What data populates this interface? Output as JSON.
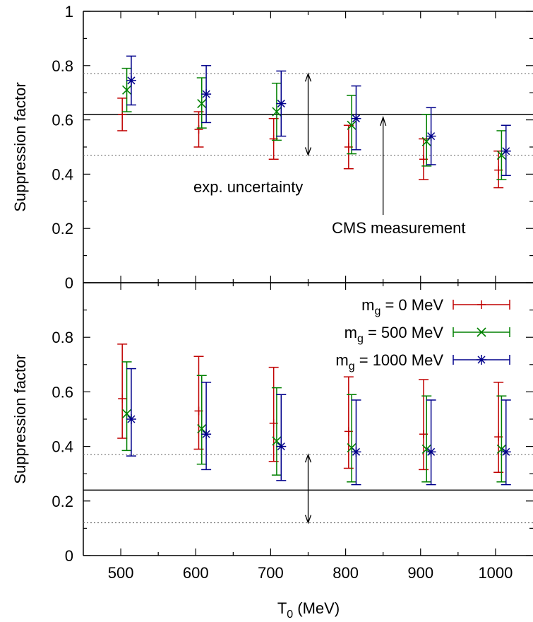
{
  "chart_data": [
    {
      "type": "scatter",
      "panel": "top",
      "ylabel": "Suppression factor",
      "ylim": [
        0,
        1
      ],
      "xlim": [
        450,
        1050
      ],
      "yticks": [
        0,
        0.2,
        0.4,
        0.6,
        0.8,
        1
      ],
      "ytick_labels": [
        "0",
        "0.2",
        "0.4",
        "0.6",
        "0.8",
        "1"
      ],
      "measurement": {
        "value": 0.62,
        "low": 0.47,
        "high": 0.77
      },
      "annotations": {
        "uncertainty_label": "exp. uncertainty",
        "measurement_label": "CMS measurement"
      },
      "series": [
        {
          "name": "m_g = 0 MeV",
          "color": "#c00000",
          "marker": "plus",
          "x": [
            502,
            604,
            704,
            804,
            904,
            1004
          ],
          "y": [
            0.62,
            0.565,
            0.53,
            0.5,
            0.455,
            0.415
          ],
          "err_low": [
            0.06,
            0.065,
            0.075,
            0.08,
            0.075,
            0.065
          ],
          "err_high": [
            0.06,
            0.065,
            0.075,
            0.08,
            0.075,
            0.07
          ]
        },
        {
          "name": "m_g = 500 MeV",
          "color": "#008000",
          "marker": "x",
          "x": [
            508,
            608,
            708,
            808,
            908,
            1008
          ],
          "y": [
            0.71,
            0.66,
            0.63,
            0.58,
            0.52,
            0.47
          ],
          "err_low": [
            0.08,
            0.09,
            0.105,
            0.105,
            0.09,
            0.09
          ],
          "err_high": [
            0.08,
            0.095,
            0.105,
            0.11,
            0.1,
            0.09
          ]
        },
        {
          "name": "m_g = 1000 MeV",
          "color": "#00008b",
          "marker": "star",
          "x": [
            514,
            614,
            714,
            814,
            914,
            1014
          ],
          "y": [
            0.745,
            0.695,
            0.66,
            0.605,
            0.54,
            0.485
          ],
          "err_low": [
            0.09,
            0.105,
            0.12,
            0.115,
            0.105,
            0.09
          ],
          "err_high": [
            0.09,
            0.105,
            0.12,
            0.12,
            0.105,
            0.095
          ]
        }
      ]
    },
    {
      "type": "scatter",
      "panel": "bottom",
      "ylabel": "Suppression factor",
      "xlabel_main": "T",
      "xlabel_sub": "0",
      "xlabel_tail": " (MeV)",
      "ylim": [
        0,
        1
      ],
      "xlim": [
        450,
        1050
      ],
      "yticks": [
        0,
        0.2,
        0.4,
        0.6,
        0.8
      ],
      "ytick_labels": [
        "0",
        "0.2",
        "0.4",
        "0.6",
        "0.8"
      ],
      "xticks": [
        500,
        600,
        700,
        800,
        900,
        1000
      ],
      "xtick_labels": [
        "500",
        "600",
        "700",
        "800",
        "900",
        "1000"
      ],
      "measurement": {
        "value": 0.24,
        "low": 0.12,
        "high": 0.37
      },
      "legend": {
        "placement": "top-right",
        "entries": [
          {
            "main": "m",
            "sub": "g",
            "tail": " = 0 MeV"
          },
          {
            "main": "m",
            "sub": "g",
            "tail": " = 500 MeV"
          },
          {
            "main": "m",
            "sub": "g",
            "tail": " = 1000 MeV"
          }
        ]
      },
      "series": [
        {
          "name": "m_g = 0 MeV",
          "color": "#c00000",
          "marker": "plus",
          "x": [
            502,
            604,
            704,
            804,
            904,
            1004
          ],
          "y": [
            0.575,
            0.53,
            0.485,
            0.455,
            0.445,
            0.435
          ],
          "err_low": [
            0.145,
            0.14,
            0.14,
            0.135,
            0.13,
            0.13
          ],
          "err_high": [
            0.2,
            0.2,
            0.205,
            0.2,
            0.2,
            0.2
          ]
        },
        {
          "name": "m_g = 500 MeV",
          "color": "#008000",
          "marker": "x",
          "x": [
            508,
            608,
            708,
            808,
            908,
            1008
          ],
          "y": [
            0.52,
            0.465,
            0.42,
            0.395,
            0.39,
            0.39
          ],
          "err_low": [
            0.135,
            0.13,
            0.125,
            0.125,
            0.12,
            0.12
          ],
          "err_high": [
            0.19,
            0.195,
            0.195,
            0.195,
            0.195,
            0.195
          ]
        },
        {
          "name": "m_g = 1000 MeV",
          "color": "#00008b",
          "marker": "star",
          "x": [
            514,
            614,
            714,
            814,
            914,
            1014
          ],
          "y": [
            0.5,
            0.445,
            0.4,
            0.38,
            0.38,
            0.38
          ],
          "err_low": [
            0.135,
            0.13,
            0.125,
            0.12,
            0.12,
            0.12
          ],
          "err_high": [
            0.185,
            0.19,
            0.19,
            0.19,
            0.19,
            0.19
          ]
        }
      ]
    }
  ]
}
